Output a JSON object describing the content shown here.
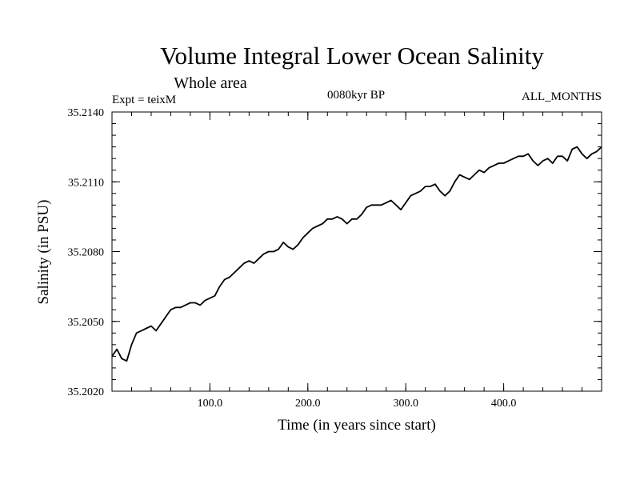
{
  "header": {
    "title": "Volume Integral Lower Ocean Salinity",
    "subtitle": "Whole area",
    "expt": "Expt = teixM",
    "period": "0080kyr BP",
    "months": "ALL_MONTHS"
  },
  "chart_data": {
    "type": "line",
    "title": "Volume Integral Lower Ocean Salinity",
    "subtitle": "Whole area",
    "xlabel": "Time (in years since start)",
    "ylabel": "Salinity (in PSU)",
    "xlim": [
      0,
      500
    ],
    "ylim": [
      35.202,
      35.214
    ],
    "xticks": [
      100,
      200,
      300,
      400
    ],
    "xtick_labels": [
      "100.0",
      "200.0",
      "300.0",
      "400.0"
    ],
    "yticks": [
      35.202,
      35.205,
      35.208,
      35.211,
      35.214
    ],
    "ytick_labels": [
      "35.2020",
      "35.2050",
      "35.2080",
      "35.2110",
      "35.2140"
    ],
    "grid": false,
    "series": [
      {
        "x": [
          0,
          5,
          10,
          15,
          20,
          25,
          30,
          35,
          40,
          45,
          50,
          55,
          60,
          65,
          70,
          75,
          80,
          85,
          90,
          95,
          100,
          105,
          110,
          115,
          120,
          125,
          130,
          135,
          140,
          145,
          150,
          155,
          160,
          165,
          170,
          175,
          180,
          185,
          190,
          195,
          200,
          205,
          210,
          215,
          220,
          225,
          230,
          235,
          240,
          245,
          250,
          255,
          260,
          265,
          270,
          275,
          280,
          285,
          290,
          295,
          300,
          305,
          310,
          315,
          320,
          325,
          330,
          335,
          340,
          345,
          350,
          355,
          360,
          365,
          370,
          375,
          380,
          385,
          390,
          395,
          400,
          405,
          410,
          415,
          420,
          425,
          430,
          435,
          440,
          445,
          450,
          455,
          460,
          465,
          470,
          475,
          480,
          485,
          490,
          495,
          500
        ],
        "values": [
          35.2035,
          35.2038,
          35.2034,
          35.2033,
          35.204,
          35.2045,
          35.2046,
          35.2047,
          35.2048,
          35.2046,
          35.2049,
          35.2052,
          35.2055,
          35.2056,
          35.2056,
          35.2057,
          35.2058,
          35.2058,
          35.2057,
          35.2059,
          35.206,
          35.2061,
          35.2065,
          35.2068,
          35.2069,
          35.2071,
          35.2073,
          35.2075,
          35.2076,
          35.2075,
          35.2077,
          35.2079,
          35.208,
          35.208,
          35.2081,
          35.2084,
          35.2082,
          35.2081,
          35.2083,
          35.2086,
          35.2088,
          35.209,
          35.2091,
          35.2092,
          35.2094,
          35.2094,
          35.2095,
          35.2094,
          35.2092,
          35.2094,
          35.2094,
          35.2096,
          35.2099,
          35.21,
          35.21,
          35.21,
          35.2101,
          35.2102,
          35.21,
          35.2098,
          35.2101,
          35.2104,
          35.2105,
          35.2106,
          35.2108,
          35.2108,
          35.2109,
          35.2106,
          35.2104,
          35.2106,
          35.211,
          35.2113,
          35.2112,
          35.2111,
          35.2113,
          35.2115,
          35.2114,
          35.2116,
          35.2117,
          35.2118,
          35.2118,
          35.2119,
          35.212,
          35.2121,
          35.2121,
          35.2122,
          35.2119,
          35.2117,
          35.2119,
          35.212,
          35.2118,
          35.2121,
          35.2121,
          35.2119,
          35.2124,
          35.2125,
          35.2122,
          35.212,
          35.2122,
          35.2123,
          35.2125
        ]
      }
    ]
  }
}
